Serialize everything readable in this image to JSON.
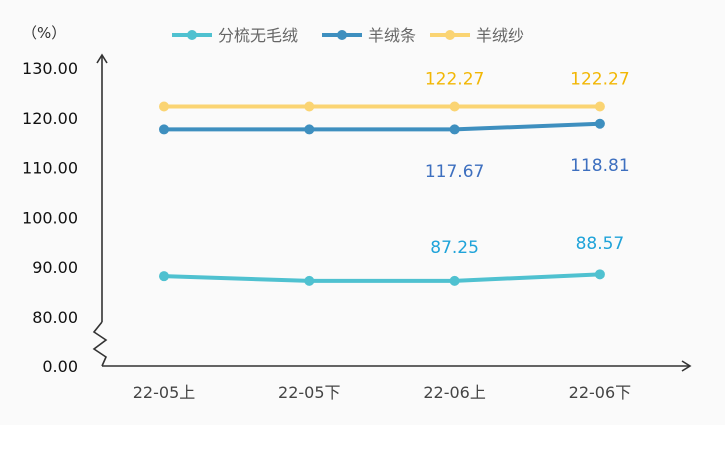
{
  "chart_data": {
    "type": "line",
    "title": "",
    "unit_label": "（%）",
    "categories": [
      "22-05上",
      "22-05下",
      "22-06上",
      "22-06下"
    ],
    "y_ticks": [
      "0.00",
      "80.00",
      "90.00",
      "100.00",
      "110.00",
      "120.00",
      "130.00"
    ],
    "y_axis_break": "between 0.00 and 80.00",
    "ylim": [
      80,
      130
    ],
    "grid": false,
    "legend_position": "top",
    "series": [
      {
        "name": "分梳无毛绒",
        "color": "#4fc1d0",
        "label_color": "#1fa3d9",
        "values": [
          88.2,
          87.25,
          87.25,
          88.57
        ],
        "data_labels": [
          null,
          null,
          "87.25",
          "88.57"
        ]
      },
      {
        "name": "羊绒条",
        "color": "#3e8fbf",
        "label_color": "#3d6fbf",
        "values": [
          117.67,
          117.67,
          117.67,
          118.81
        ],
        "data_labels": [
          null,
          null,
          "117.67",
          "118.81"
        ]
      },
      {
        "name": "羊绒纱",
        "color": "#fad473",
        "label_color": "#f2b705",
        "values": [
          122.27,
          122.27,
          122.27,
          122.27
        ],
        "data_labels": [
          null,
          null,
          "122.27",
          "122.27"
        ]
      }
    ]
  }
}
